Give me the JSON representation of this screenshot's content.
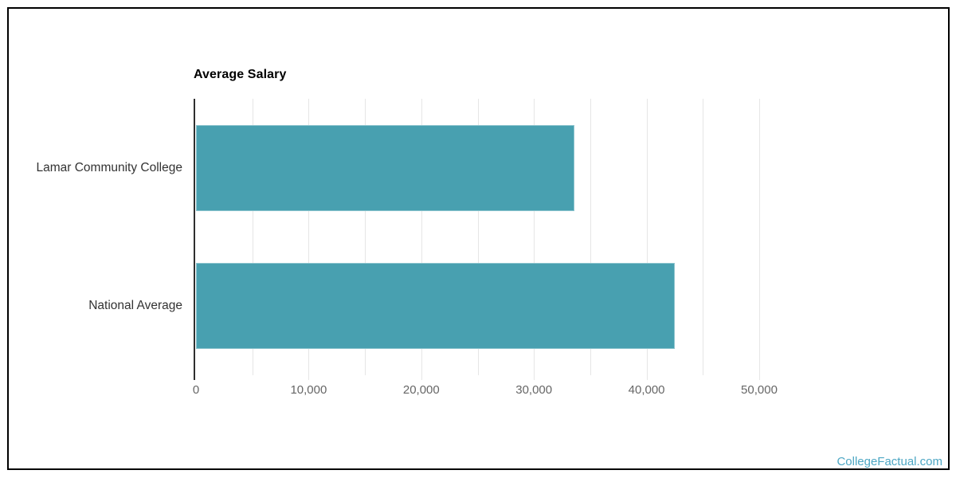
{
  "page": {
    "background_color": "#ffffff",
    "frame_border_color": "#000000"
  },
  "watermark": {
    "text": "CollegeFactual.com",
    "color": "#4da7c4"
  },
  "chart_data": {
    "type": "bar",
    "orientation": "horizontal",
    "title": "Average Salary",
    "xlabel": "",
    "ylabel": "",
    "categories": [
      "Lamar Community College",
      "National Average"
    ],
    "series": [
      {
        "name": "Average Salary",
        "values": [
          33600,
          42500
        ]
      }
    ],
    "value_axis": {
      "min": 0,
      "max": 50000,
      "tick_interval": 10000,
      "minor_tick_interval": 5000,
      "tick_labels": [
        "0",
        "10,000",
        "20,000",
        "30,000",
        "40,000",
        "50,000"
      ]
    },
    "grid": true,
    "legend": false,
    "colors": {
      "bar_fill": "#48a0b0",
      "bar_border": "#8cc4ce",
      "gridline": "#e6e6e6",
      "axis_line": "#2f2f2f",
      "tick_label": "#666666",
      "category_label": "#333333",
      "title": "#000000"
    }
  }
}
